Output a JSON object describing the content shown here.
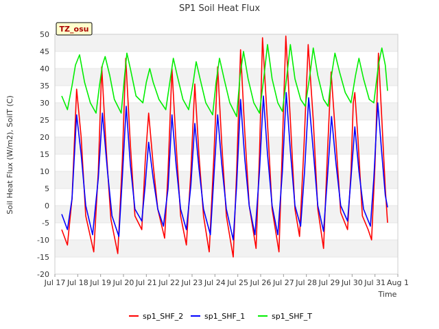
{
  "chart_data": {
    "type": "line",
    "title": "SP1 Soil Heat Flux",
    "xlabel": "Time",
    "ylabel": "Soil Heat Flux (W/m2), SoilT (C)",
    "tag": "TZ_osu",
    "xlim": [
      17,
      32
    ],
    "ylim": [
      -20,
      50
    ],
    "yticks": [
      -20,
      -15,
      -10,
      -5,
      0,
      5,
      10,
      15,
      20,
      25,
      30,
      35,
      40,
      45,
      50
    ],
    "xticks": [
      17,
      18,
      19,
      20,
      21,
      22,
      23,
      24,
      25,
      26,
      27,
      28,
      29,
      30,
      31,
      32
    ],
    "xtick_labels": [
      "Jul 17",
      "Jul 18",
      "Jul 19",
      "Jul 20",
      "Jul 21",
      "Jul 22",
      "Jul 23",
      "Jul 24",
      "Jul 25",
      "Jul 26",
      "Jul 27",
      "Jul 28",
      "Jul 29",
      "Jul 30",
      "Jul 31",
      "Aug 1"
    ],
    "grid": "horizontal bands",
    "legend_position": "bottom",
    "series": [
      {
        "name": "sp1_SHF_2",
        "color": "#ff0000",
        "points": [
          [
            17.3,
            -7
          ],
          [
            17.55,
            -11.5
          ],
          [
            17.75,
            2
          ],
          [
            17.95,
            34
          ],
          [
            18.15,
            20
          ],
          [
            18.35,
            -3
          ],
          [
            18.7,
            -13.5
          ],
          [
            18.9,
            10
          ],
          [
            19.05,
            40.5
          ],
          [
            19.25,
            16
          ],
          [
            19.45,
            -4
          ],
          [
            19.75,
            -14
          ],
          [
            19.95,
            13
          ],
          [
            20.1,
            43
          ],
          [
            20.3,
            18
          ],
          [
            20.5,
            -3
          ],
          [
            20.8,
            -7
          ],
          [
            20.95,
            13
          ],
          [
            21.1,
            27
          ],
          [
            21.3,
            12
          ],
          [
            21.5,
            -1
          ],
          [
            21.8,
            -9.5
          ],
          [
            21.95,
            10
          ],
          [
            22.12,
            40
          ],
          [
            22.3,
            18
          ],
          [
            22.5,
            -3
          ],
          [
            22.75,
            -11.5
          ],
          [
            22.95,
            10
          ],
          [
            23.12,
            35.5
          ],
          [
            23.3,
            15
          ],
          [
            23.5,
            -3
          ],
          [
            23.75,
            -13.5
          ],
          [
            23.95,
            14
          ],
          [
            24.12,
            40.5
          ],
          [
            24.3,
            18
          ],
          [
            24.5,
            -3
          ],
          [
            24.8,
            -15
          ],
          [
            24.95,
            10
          ],
          [
            25.12,
            45.5
          ],
          [
            25.3,
            22
          ],
          [
            25.5,
            0
          ],
          [
            25.8,
            -12.5
          ],
          [
            25.95,
            15
          ],
          [
            26.08,
            49
          ],
          [
            26.3,
            24
          ],
          [
            26.5,
            -1
          ],
          [
            26.8,
            -13.5
          ],
          [
            26.95,
            18
          ],
          [
            27.1,
            49.5
          ],
          [
            27.3,
            25
          ],
          [
            27.5,
            -1
          ],
          [
            27.7,
            -9
          ],
          [
            27.9,
            18
          ],
          [
            28.08,
            47
          ],
          [
            28.3,
            25
          ],
          [
            28.5,
            -1
          ],
          [
            28.75,
            -12.5
          ],
          [
            28.92,
            15
          ],
          [
            29.08,
            39
          ],
          [
            29.3,
            18
          ],
          [
            29.5,
            -2
          ],
          [
            29.8,
            -7
          ],
          [
            29.95,
            10
          ],
          [
            30.05,
            30
          ],
          [
            30.12,
            33
          ],
          [
            30.25,
            20
          ],
          [
            30.45,
            -3
          ],
          [
            30.7,
            -7
          ],
          [
            30.85,
            -10
          ],
          [
            31.0,
            12
          ],
          [
            31.15,
            44.5
          ],
          [
            31.3,
            25
          ],
          [
            31.45,
            5
          ],
          [
            31.55,
            -5
          ]
        ]
      },
      {
        "name": "sp1_SHF_1",
        "color": "#0000ff",
        "points": [
          [
            17.3,
            -2.5
          ],
          [
            17.55,
            -7
          ],
          [
            17.75,
            2
          ],
          [
            17.95,
            26.5
          ],
          [
            18.15,
            15
          ],
          [
            18.35,
            0
          ],
          [
            18.65,
            -8.5
          ],
          [
            18.9,
            8
          ],
          [
            19.08,
            27
          ],
          [
            19.3,
            10
          ],
          [
            19.5,
            -3
          ],
          [
            19.8,
            -9
          ],
          [
            19.95,
            8
          ],
          [
            20.12,
            29
          ],
          [
            20.3,
            12
          ],
          [
            20.5,
            -1
          ],
          [
            20.8,
            -4.5
          ],
          [
            20.95,
            6
          ],
          [
            21.1,
            18.5
          ],
          [
            21.3,
            8
          ],
          [
            21.5,
            -1
          ],
          [
            21.75,
            -6
          ],
          [
            21.95,
            5
          ],
          [
            22.12,
            26.5
          ],
          [
            22.3,
            12
          ],
          [
            22.5,
            -1
          ],
          [
            22.75,
            -7
          ],
          [
            22.95,
            6
          ],
          [
            23.12,
            24
          ],
          [
            23.3,
            11
          ],
          [
            23.5,
            -1
          ],
          [
            23.8,
            -8.5
          ],
          [
            23.95,
            8
          ],
          [
            24.12,
            26.5
          ],
          [
            24.3,
            12
          ],
          [
            24.5,
            -1
          ],
          [
            24.8,
            -10
          ],
          [
            24.95,
            6
          ],
          [
            25.12,
            31
          ],
          [
            25.3,
            14
          ],
          [
            25.5,
            0
          ],
          [
            25.75,
            -8.5
          ],
          [
            25.95,
            10
          ],
          [
            26.12,
            32
          ],
          [
            26.3,
            15
          ],
          [
            26.5,
            0
          ],
          [
            26.75,
            -8.5
          ],
          [
            26.95,
            10
          ],
          [
            27.12,
            33
          ],
          [
            27.3,
            16
          ],
          [
            27.5,
            0
          ],
          [
            27.75,
            -6
          ],
          [
            27.92,
            10
          ],
          [
            28.1,
            31.5
          ],
          [
            28.3,
            16
          ],
          [
            28.5,
            0
          ],
          [
            28.75,
            -7.5
          ],
          [
            28.92,
            8
          ],
          [
            29.1,
            26
          ],
          [
            29.3,
            12
          ],
          [
            29.5,
            0
          ],
          [
            29.8,
            -4.5
          ],
          [
            29.95,
            8
          ],
          [
            30.12,
            23
          ],
          [
            30.3,
            10
          ],
          [
            30.5,
            -1
          ],
          [
            30.8,
            -6
          ],
          [
            30.95,
            8
          ],
          [
            31.12,
            30
          ],
          [
            31.3,
            15
          ],
          [
            31.45,
            3
          ],
          [
            31.55,
            -0.5
          ]
        ]
      },
      {
        "name": "sp1_SHF_T",
        "color": "#00ee00",
        "points": [
          [
            17.3,
            32
          ],
          [
            17.55,
            28
          ],
          [
            17.75,
            35
          ],
          [
            17.9,
            41
          ],
          [
            18.08,
            44
          ],
          [
            18.3,
            36
          ],
          [
            18.55,
            30
          ],
          [
            18.8,
            27
          ],
          [
            18.95,
            35
          ],
          [
            19.08,
            41
          ],
          [
            19.2,
            43.5
          ],
          [
            19.4,
            38
          ],
          [
            19.6,
            31
          ],
          [
            19.9,
            27
          ],
          [
            20.05,
            38
          ],
          [
            20.15,
            44.5
          ],
          [
            20.3,
            40
          ],
          [
            20.55,
            32
          ],
          [
            20.85,
            30
          ],
          [
            21.0,
            36
          ],
          [
            21.15,
            40
          ],
          [
            21.3,
            36
          ],
          [
            21.55,
            31
          ],
          [
            21.85,
            28
          ],
          [
            22.05,
            37
          ],
          [
            22.18,
            43
          ],
          [
            22.35,
            38
          ],
          [
            22.6,
            31
          ],
          [
            22.85,
            28
          ],
          [
            23.05,
            36
          ],
          [
            23.18,
            42
          ],
          [
            23.35,
            37
          ],
          [
            23.6,
            30
          ],
          [
            23.9,
            26.5
          ],
          [
            24.05,
            36
          ],
          [
            24.2,
            43
          ],
          [
            24.4,
            37
          ],
          [
            24.65,
            30
          ],
          [
            24.95,
            26
          ],
          [
            25.1,
            38
          ],
          [
            25.25,
            45
          ],
          [
            25.45,
            37
          ],
          [
            25.7,
            30
          ],
          [
            25.95,
            27
          ],
          [
            26.15,
            38
          ],
          [
            26.3,
            47
          ],
          [
            26.5,
            37
          ],
          [
            26.75,
            30
          ],
          [
            26.95,
            27.5
          ],
          [
            27.15,
            38
          ],
          [
            27.3,
            47
          ],
          [
            27.5,
            37
          ],
          [
            27.75,
            31
          ],
          [
            27.95,
            29
          ],
          [
            28.15,
            38
          ],
          [
            28.3,
            46
          ],
          [
            28.5,
            38
          ],
          [
            28.75,
            31
          ],
          [
            28.95,
            29
          ],
          [
            29.1,
            38
          ],
          [
            29.25,
            44.5
          ],
          [
            29.45,
            39
          ],
          [
            29.7,
            33
          ],
          [
            29.95,
            30
          ],
          [
            30.15,
            38
          ],
          [
            30.3,
            43
          ],
          [
            30.5,
            37
          ],
          [
            30.75,
            31
          ],
          [
            30.95,
            30
          ],
          [
            31.15,
            41
          ],
          [
            31.3,
            46
          ],
          [
            31.45,
            41
          ],
          [
            31.55,
            33.5
          ]
        ]
      }
    ]
  }
}
